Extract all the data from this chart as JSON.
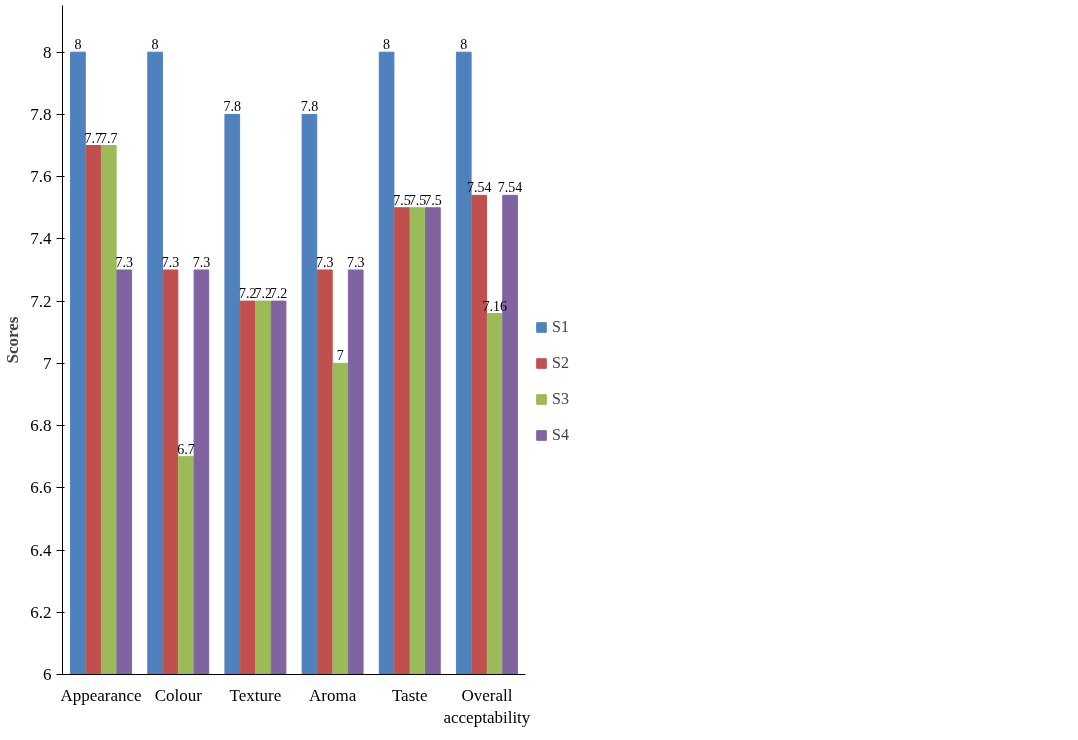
{
  "chart_data": {
    "type": "bar",
    "ylabel": "Scores",
    "categories": [
      "Appearance",
      "Colour",
      "Texture",
      "Aroma",
      "Taste",
      "Overall acceptability"
    ],
    "series": [
      {
        "name": "S1",
        "color": "#4f81bd",
        "values": [
          8,
          8,
          7.8,
          7.8,
          8,
          8
        ]
      },
      {
        "name": "S2",
        "color": "#c0504d",
        "values": [
          7.7,
          7.3,
          7.2,
          7.3,
          7.5,
          7.54
        ]
      },
      {
        "name": "S3",
        "color": "#9bbb59",
        "values": [
          7.7,
          6.7,
          7.2,
          7,
          7.5,
          7.16
        ]
      },
      {
        "name": "S4",
        "color": "#8064a2",
        "values": [
          7.3,
          7.3,
          7.2,
          7.3,
          7.5,
          7.54
        ]
      }
    ],
    "ylim": [
      6,
      8.15
    ],
    "yticks": [
      6,
      6.2,
      6.4,
      6.6,
      6.8,
      7,
      7.2,
      7.4,
      7.6,
      7.8,
      8
    ],
    "data_labels": true,
    "grid": false,
    "legend": "right"
  }
}
